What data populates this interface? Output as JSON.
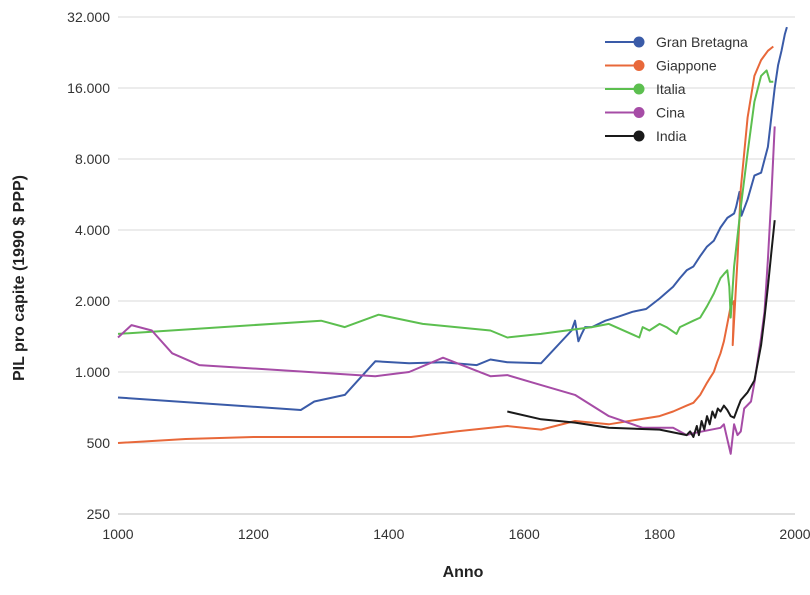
{
  "chart_data": {
    "type": "line",
    "title": "",
    "xlabel": "Anno",
    "ylabel": "PIL pro capite (1990 $ PPP)",
    "xlim": [
      1000,
      2000
    ],
    "ylim": [
      250,
      32000
    ],
    "yscale": "log2",
    "xticks": [
      "1000",
      "1200",
      "1400",
      "1600",
      "1800",
      "2000"
    ],
    "yticks": [
      "250",
      "500",
      "1.000",
      "2.000",
      "4.000",
      "8.000",
      "16.000",
      "32.000"
    ],
    "grid": "horizontal",
    "legend_position": "top-right",
    "series": [
      {
        "name": "Gran Bretagna",
        "color": "#3a5ba8",
        "points": [
          [
            1000,
            780
          ],
          [
            1270,
            690
          ],
          [
            1290,
            750
          ],
          [
            1335,
            800
          ],
          [
            1380,
            1110
          ],
          [
            1430,
            1090
          ],
          [
            1480,
            1100
          ],
          [
            1530,
            1070
          ],
          [
            1550,
            1130
          ],
          [
            1575,
            1100
          ],
          [
            1625,
            1090
          ],
          [
            1670,
            1500
          ],
          [
            1675,
            1650
          ],
          [
            1680,
            1350
          ],
          [
            1685,
            1450
          ],
          [
            1690,
            1550
          ],
          [
            1700,
            1550
          ],
          [
            1720,
            1650
          ],
          [
            1740,
            1720
          ],
          [
            1760,
            1800
          ],
          [
            1780,
            1850
          ],
          [
            1800,
            2050
          ],
          [
            1820,
            2300
          ],
          [
            1830,
            2500
          ],
          [
            1840,
            2700
          ],
          [
            1850,
            2800
          ],
          [
            1860,
            3100
          ],
          [
            1870,
            3400
          ],
          [
            1880,
            3600
          ],
          [
            1890,
            4100
          ],
          [
            1900,
            4500
          ],
          [
            1910,
            4700
          ],
          [
            1913,
            5000
          ],
          [
            1918,
            5800
          ],
          [
            1921,
            4600
          ],
          [
            1930,
            5400
          ],
          [
            1940,
            6800
          ],
          [
            1950,
            7000
          ],
          [
            1960,
            9000
          ],
          [
            1970,
            16000
          ],
          [
            1975,
            20000
          ],
          [
            1980,
            23000
          ],
          [
            1985,
            27000
          ],
          [
            1988,
            29000
          ]
        ]
      },
      {
        "name": "Giappone",
        "color": "#e8683a",
        "points": [
          [
            1000,
            500
          ],
          [
            1100,
            520
          ],
          [
            1200,
            530
          ],
          [
            1433,
            530
          ],
          [
            1500,
            560
          ],
          [
            1575,
            590
          ],
          [
            1625,
            570
          ],
          [
            1675,
            620
          ],
          [
            1725,
            600
          ],
          [
            1800,
            650
          ],
          [
            1820,
            680
          ],
          [
            1840,
            720
          ],
          [
            1850,
            740
          ],
          [
            1860,
            800
          ],
          [
            1870,
            900
          ],
          [
            1875,
            950
          ],
          [
            1880,
            1000
          ],
          [
            1885,
            1100
          ],
          [
            1890,
            1200
          ],
          [
            1895,
            1350
          ],
          [
            1900,
            1600
          ],
          [
            1905,
            1900
          ],
          [
            1910,
            2000
          ],
          [
            1908,
            1300
          ],
          [
            1915,
            3000
          ],
          [
            1920,
            6000
          ],
          [
            1930,
            12000
          ],
          [
            1940,
            18000
          ],
          [
            1950,
            21000
          ],
          [
            1960,
            23000
          ],
          [
            1968,
            24000
          ]
        ]
      },
      {
        "name": "Italia",
        "color": "#5cbf4f",
        "points": [
          [
            1000,
            1450
          ],
          [
            1300,
            1650
          ],
          [
            1335,
            1550
          ],
          [
            1385,
            1750
          ],
          [
            1450,
            1600
          ],
          [
            1550,
            1500
          ],
          [
            1575,
            1400
          ],
          [
            1625,
            1450
          ],
          [
            1700,
            1550
          ],
          [
            1725,
            1600
          ],
          [
            1770,
            1400
          ],
          [
            1775,
            1550
          ],
          [
            1785,
            1500
          ],
          [
            1800,
            1600
          ],
          [
            1810,
            1550
          ],
          [
            1825,
            1450
          ],
          [
            1830,
            1550
          ],
          [
            1850,
            1650
          ],
          [
            1860,
            1700
          ],
          [
            1870,
            1900
          ],
          [
            1880,
            2150
          ],
          [
            1890,
            2500
          ],
          [
            1895,
            2600
          ],
          [
            1900,
            2700
          ],
          [
            1903,
            2300
          ],
          [
            1905,
            1700
          ],
          [
            1910,
            2800
          ],
          [
            1920,
            5000
          ],
          [
            1930,
            8500
          ],
          [
            1940,
            14000
          ],
          [
            1950,
            18000
          ],
          [
            1958,
            19000
          ],
          [
            1963,
            17000
          ],
          [
            1968,
            17000
          ]
        ]
      },
      {
        "name": "Cina",
        "color": "#a64ca6",
        "points": [
          [
            1000,
            1400
          ],
          [
            1020,
            1580
          ],
          [
            1050,
            1500
          ],
          [
            1080,
            1200
          ],
          [
            1120,
            1070
          ],
          [
            1380,
            960
          ],
          [
            1430,
            1000
          ],
          [
            1480,
            1150
          ],
          [
            1550,
            960
          ],
          [
            1575,
            970
          ],
          [
            1625,
            880
          ],
          [
            1675,
            800
          ],
          [
            1725,
            650
          ],
          [
            1775,
            580
          ],
          [
            1820,
            580
          ],
          [
            1840,
            540
          ],
          [
            1850,
            550
          ],
          [
            1890,
            580
          ],
          [
            1895,
            600
          ],
          [
            1898,
            550
          ],
          [
            1905,
            450
          ],
          [
            1910,
            600
          ],
          [
            1915,
            540
          ],
          [
            1920,
            560
          ],
          [
            1925,
            700
          ],
          [
            1935,
            750
          ],
          [
            1940,
            900
          ],
          [
            1950,
            1400
          ],
          [
            1955,
            1800
          ],
          [
            1960,
            3000
          ],
          [
            1965,
            5500
          ],
          [
            1970,
            11000
          ]
        ]
      },
      {
        "name": "India",
        "color": "#1a1a1a",
        "points": [
          [
            1575,
            680
          ],
          [
            1625,
            630
          ],
          [
            1675,
            610
          ],
          [
            1725,
            580
          ],
          [
            1800,
            570
          ],
          [
            1840,
            540
          ],
          [
            1845,
            560
          ],
          [
            1850,
            530
          ],
          [
            1855,
            590
          ],
          [
            1858,
            540
          ],
          [
            1862,
            620
          ],
          [
            1866,
            570
          ],
          [
            1870,
            650
          ],
          [
            1874,
            600
          ],
          [
            1878,
            680
          ],
          [
            1882,
            640
          ],
          [
            1886,
            700
          ],
          [
            1890,
            680
          ],
          [
            1895,
            720
          ],
          [
            1900,
            690
          ],
          [
            1905,
            650
          ],
          [
            1910,
            640
          ],
          [
            1915,
            700
          ],
          [
            1920,
            760
          ],
          [
            1930,
            820
          ],
          [
            1940,
            920
          ],
          [
            1950,
            1300
          ],
          [
            1955,
            1700
          ],
          [
            1960,
            2300
          ],
          [
            1965,
            3200
          ],
          [
            1970,
            4400
          ]
        ]
      }
    ]
  }
}
